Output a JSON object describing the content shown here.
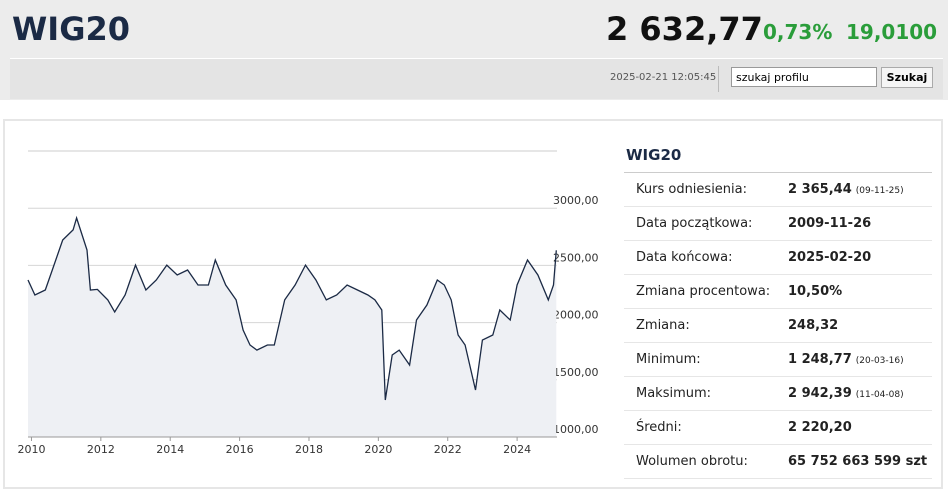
{
  "header": {
    "title": "WIG20",
    "price": "2 632,77",
    "change_pct": "0,73%",
    "change": "19,0100",
    "timestamp": "2025-02-21 12:05:45",
    "search_placeholder": "szukaj profilu",
    "search_button": "Szukaj"
  },
  "chart_data": {
    "type": "line",
    "color": "#1b2a45",
    "grid": true,
    "x": [
      2009.9,
      2010.1,
      2010.4,
      2010.6,
      2010.9,
      2011.2,
      2011.3,
      2011.6,
      2011.7,
      2011.9,
      2012.2,
      2012.4,
      2012.7,
      2013.0,
      2013.3,
      2013.6,
      2013.9,
      2014.2,
      2014.5,
      2014.8,
      2015.1,
      2015.3,
      2015.6,
      2015.9,
      2016.1,
      2016.3,
      2016.5,
      2016.8,
      2017.0,
      2017.3,
      2017.6,
      2017.9,
      2018.2,
      2018.5,
      2018.8,
      2019.1,
      2019.4,
      2019.7,
      2019.9,
      2020.1,
      2020.2,
      2020.4,
      2020.6,
      2020.9,
      2021.1,
      2021.4,
      2021.7,
      2021.9,
      2022.1,
      2022.3,
      2022.5,
      2022.8,
      2023.0,
      2023.3,
      2023.5,
      2023.8,
      2024.0,
      2024.3,
      2024.6,
      2024.9,
      2025.05,
      2025.13
    ],
    "values": [
      2372,
      2241,
      2285,
      2460,
      2722,
      2810,
      2914,
      2635,
      2285,
      2290,
      2198,
      2093,
      2241,
      2503,
      2285,
      2372,
      2503,
      2416,
      2460,
      2329,
      2329,
      2547,
      2329,
      2198,
      1935,
      1804,
      1760,
      1804,
      1804,
      2198,
      2329,
      2503,
      2372,
      2198,
      2241,
      2329,
      2285,
      2241,
      2198,
      2110,
      1323,
      1717,
      1760,
      1629,
      2023,
      2154,
      2372,
      2329,
      2198,
      1892,
      1804,
      1411,
      1848,
      1892,
      2110,
      2023,
      2329,
      2547,
      2416,
      2198,
      2329,
      2632
    ],
    "xlim": [
      2009.9,
      2025.15
    ],
    "xticks": [
      2010,
      2012,
      2014,
      2016,
      2018,
      2020,
      2022,
      2024
    ],
    "ylim": [
      1000,
      3500
    ],
    "yticks": [
      {
        "value": 1000,
        "label": "1000,00"
      },
      {
        "value": 1500,
        "label": "1500,00"
      },
      {
        "value": 2000,
        "label": "2000,00"
      },
      {
        "value": 2500,
        "label": "2500,00"
      },
      {
        "value": 3000,
        "label": "3000,00"
      }
    ]
  },
  "stats": {
    "title": "WIG20",
    "rows": [
      {
        "label": "Kurs odniesienia:",
        "value": "2 365,44",
        "note": "(09-11-25)"
      },
      {
        "label": "Data początkowa:",
        "value": "2009-11-26"
      },
      {
        "label": "Data końcowa:",
        "value": "2025-02-20"
      },
      {
        "label": "Zmiana procentowa:",
        "value": "10,50%"
      },
      {
        "label": "Zmiana:",
        "value": "248,32"
      },
      {
        "label": "Minimum:",
        "value": "1 248,77",
        "note": "(20-03-16)"
      },
      {
        "label": "Maksimum:",
        "value": "2 942,39",
        "note": "(11-04-08)"
      },
      {
        "label": "Średni:",
        "value": "2 220,20"
      },
      {
        "label": "Wolumen obrotu:",
        "value": "65 752 663 599 szt"
      }
    ]
  }
}
